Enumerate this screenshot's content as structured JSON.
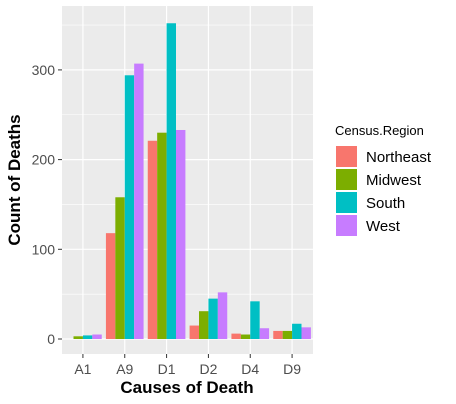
{
  "chart_data": {
    "type": "bar",
    "xlabel": "Causes of Death",
    "ylabel": "Count of Deaths",
    "categories": [
      "A1",
      "A9",
      "D1",
      "D2",
      "D4",
      "D9"
    ],
    "ylim": [
      0,
      360
    ],
    "yticks": [
      0,
      100,
      200,
      300
    ],
    "grid": true,
    "legend_title": "Census.Region",
    "legend_position": "right",
    "series": [
      {
        "name": "Northeast",
        "color": "#F8766D",
        "values": [
          0,
          118,
          221,
          15,
          6,
          9
        ]
      },
      {
        "name": "Midwest",
        "color": "#7CAE00",
        "values": [
          3,
          158,
          230,
          31,
          5,
          9
        ]
      },
      {
        "name": "South",
        "color": "#00BFC4",
        "values": [
          4,
          294,
          352,
          45,
          42,
          17
        ]
      },
      {
        "name": "West",
        "color": "#C77CFF",
        "values": [
          5,
          307,
          233,
          52,
          12,
          13
        ]
      }
    ]
  }
}
